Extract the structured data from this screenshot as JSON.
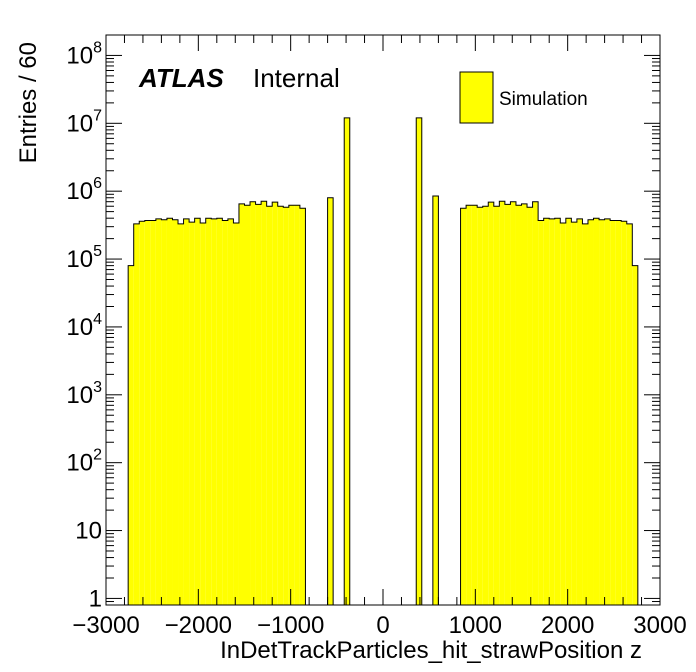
{
  "chart_data": {
    "type": "bar",
    "histogram": true,
    "xlabel": "InDetTrackParticles_hit_strawPosition z",
    "ylabel": "Entries / 60",
    "xlim": [
      -3000,
      3000
    ],
    "ylim": [
      0.8,
      200000000
    ],
    "y_scale": "log",
    "x_ticks": [
      "−3000",
      "−2000",
      "−1000",
      "0",
      "1000",
      "2000",
      "3000"
    ],
    "y_ticks": [
      "1",
      "10",
      "10^2",
      "10^3",
      "10^4",
      "10^5",
      "10^6",
      "10^7",
      "10^8"
    ],
    "fill_color": "#ffff00",
    "line_color": "#000000",
    "label_bold": "ATLAS",
    "label_extra": "Internal",
    "legend": [
      {
        "name": "Simulation",
        "color": "#ffff00"
      }
    ],
    "legend_position": "top-right",
    "bin_width": 60,
    "bins": [
      {
        "x0": -2760,
        "x1": -2700,
        "y": 80000
      },
      {
        "x0": -2700,
        "x1": -2640,
        "y": 330000
      },
      {
        "x0": -2640,
        "x1": -2580,
        "y": 360000
      },
      {
        "x0": -2580,
        "x1": -2520,
        "y": 370000
      },
      {
        "x0": -2520,
        "x1": -2460,
        "y": 370000
      },
      {
        "x0": -2460,
        "x1": -2400,
        "y": 390000
      },
      {
        "x0": -2400,
        "x1": -2340,
        "y": 380000
      },
      {
        "x0": -2340,
        "x1": -2280,
        "y": 400000
      },
      {
        "x0": -2280,
        "x1": -2220,
        "y": 380000
      },
      {
        "x0": -2220,
        "x1": -2160,
        "y": 330000
      },
      {
        "x0": -2160,
        "x1": -2100,
        "y": 390000
      },
      {
        "x0": -2100,
        "x1": -2040,
        "y": 350000
      },
      {
        "x0": -2040,
        "x1": -1980,
        "y": 400000
      },
      {
        "x0": -1980,
        "x1": -1920,
        "y": 340000
      },
      {
        "x0": -1920,
        "x1": -1860,
        "y": 400000
      },
      {
        "x0": -1860,
        "x1": -1800,
        "y": 390000
      },
      {
        "x0": -1800,
        "x1": -1740,
        "y": 400000
      },
      {
        "x0": -1740,
        "x1": -1680,
        "y": 370000
      },
      {
        "x0": -1680,
        "x1": -1620,
        "y": 390000
      },
      {
        "x0": -1620,
        "x1": -1560,
        "y": 340000
      },
      {
        "x0": -1560,
        "x1": -1500,
        "y": 650000
      },
      {
        "x0": -1500,
        "x1": -1440,
        "y": 620000
      },
      {
        "x0": -1440,
        "x1": -1380,
        "y": 700000
      },
      {
        "x0": -1380,
        "x1": -1320,
        "y": 640000
      },
      {
        "x0": -1320,
        "x1": -1260,
        "y": 710000
      },
      {
        "x0": -1260,
        "x1": -1200,
        "y": 600000
      },
      {
        "x0": -1200,
        "x1": -1140,
        "y": 690000
      },
      {
        "x0": -1140,
        "x1": -1080,
        "y": 600000
      },
      {
        "x0": -1080,
        "x1": -1020,
        "y": 580000
      },
      {
        "x0": -1020,
        "x1": -960,
        "y": 620000
      },
      {
        "x0": -960,
        "x1": -900,
        "y": 620000
      },
      {
        "x0": -900,
        "x1": -840,
        "y": 560000
      },
      {
        "x0": -600,
        "x1": -540,
        "y": 800000
      },
      {
        "x0": -420,
        "x1": -360,
        "y": 12000000
      },
      {
        "x0": 360,
        "x1": 420,
        "y": 12000000
      },
      {
        "x0": 540,
        "x1": 600,
        "y": 850000
      },
      {
        "x0": 840,
        "x1": 900,
        "y": 560000
      },
      {
        "x0": 900,
        "x1": 960,
        "y": 620000
      },
      {
        "x0": 960,
        "x1": 1020,
        "y": 620000
      },
      {
        "x0": 1020,
        "x1": 1080,
        "y": 580000
      },
      {
        "x0": 1080,
        "x1": 1140,
        "y": 600000
      },
      {
        "x0": 1140,
        "x1": 1200,
        "y": 690000
      },
      {
        "x0": 1200,
        "x1": 1260,
        "y": 600000
      },
      {
        "x0": 1260,
        "x1": 1320,
        "y": 710000
      },
      {
        "x0": 1320,
        "x1": 1380,
        "y": 640000
      },
      {
        "x0": 1380,
        "x1": 1440,
        "y": 700000
      },
      {
        "x0": 1440,
        "x1": 1500,
        "y": 620000
      },
      {
        "x0": 1500,
        "x1": 1560,
        "y": 650000
      },
      {
        "x0": 1560,
        "x1": 1620,
        "y": 580000
      },
      {
        "x0": 1620,
        "x1": 1680,
        "y": 700000
      },
      {
        "x0": 1680,
        "x1": 1740,
        "y": 370000
      },
      {
        "x0": 1740,
        "x1": 1800,
        "y": 400000
      },
      {
        "x0": 1800,
        "x1": 1860,
        "y": 390000
      },
      {
        "x0": 1860,
        "x1": 1920,
        "y": 400000
      },
      {
        "x0": 1920,
        "x1": 1980,
        "y": 340000
      },
      {
        "x0": 1980,
        "x1": 2040,
        "y": 400000
      },
      {
        "x0": 2040,
        "x1": 2100,
        "y": 350000
      },
      {
        "x0": 2100,
        "x1": 2160,
        "y": 390000
      },
      {
        "x0": 2160,
        "x1": 2220,
        "y": 330000
      },
      {
        "x0": 2220,
        "x1": 2280,
        "y": 380000
      },
      {
        "x0": 2280,
        "x1": 2340,
        "y": 400000
      },
      {
        "x0": 2340,
        "x1": 2400,
        "y": 380000
      },
      {
        "x0": 2400,
        "x1": 2460,
        "y": 390000
      },
      {
        "x0": 2460,
        "x1": 2520,
        "y": 370000
      },
      {
        "x0": 2520,
        "x1": 2580,
        "y": 370000
      },
      {
        "x0": 2580,
        "x1": 2640,
        "y": 360000
      },
      {
        "x0": 2640,
        "x1": 2700,
        "y": 330000
      },
      {
        "x0": 2700,
        "x1": 2760,
        "y": 80000
      }
    ]
  }
}
